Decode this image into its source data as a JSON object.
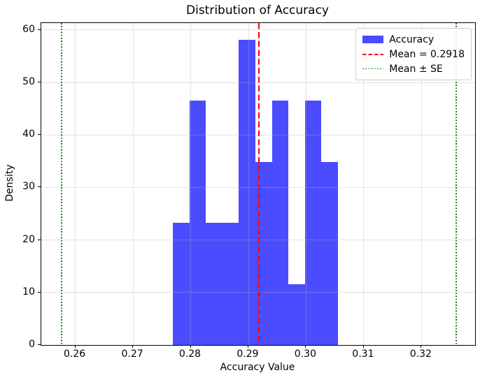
{
  "chart_data": {
    "type": "bar",
    "subtype": "histogram",
    "title": "Distribution of Accuracy",
    "xlabel": "Accuracy Value",
    "ylabel": "Density",
    "xlim": [
      0.2541,
      0.3293
    ],
    "ylim": [
      0,
      61.3
    ],
    "x_ticks": [
      0.26,
      0.27,
      0.28,
      0.29,
      0.3,
      0.31,
      0.32
    ],
    "x_tick_labels": [
      "0.26",
      "0.27",
      "0.28",
      "0.29",
      "0.30",
      "0.31",
      "0.32"
    ],
    "y_ticks": [
      0,
      10,
      20,
      30,
      40,
      50,
      60
    ],
    "y_tick_labels": [
      "0",
      "10",
      "20",
      "30",
      "40",
      "50",
      "60"
    ],
    "grid": true,
    "bin_edges": [
      0.2769,
      0.27976,
      0.28263,
      0.28549,
      0.28835,
      0.29122,
      0.29408,
      0.29694,
      0.29981,
      0.30267,
      0.30553
    ],
    "bin_densities": [
      23.26,
      46.52,
      23.26,
      23.26,
      58.15,
      34.89,
      46.52,
      11.63,
      46.52,
      34.89
    ],
    "bin_counts": [
      2,
      4,
      2,
      2,
      5,
      3,
      4,
      1,
      4,
      3
    ],
    "mean": 0.2918,
    "mean_line_x": 0.2918,
    "se_lines_x": [
      0.2576,
      0.326
    ],
    "colors": {
      "bars": "rgba(0,0,255,0.7)",
      "mean_line": "#ff0000",
      "se_line": "#008000",
      "grid": "rgba(176,176,176,0.35)",
      "spine": "#000000"
    },
    "legend": {
      "position": "upper right",
      "entries": [
        {
          "label": "Accuracy",
          "swatch": "patch",
          "color": "rgba(0,0,255,0.7)"
        },
        {
          "label": "Mean = 0.2918",
          "swatch": "dashed-line",
          "color": "#ff0000"
        },
        {
          "label": "Mean ± SE",
          "swatch": "dotted-line",
          "color": "#008000"
        }
      ]
    }
  }
}
